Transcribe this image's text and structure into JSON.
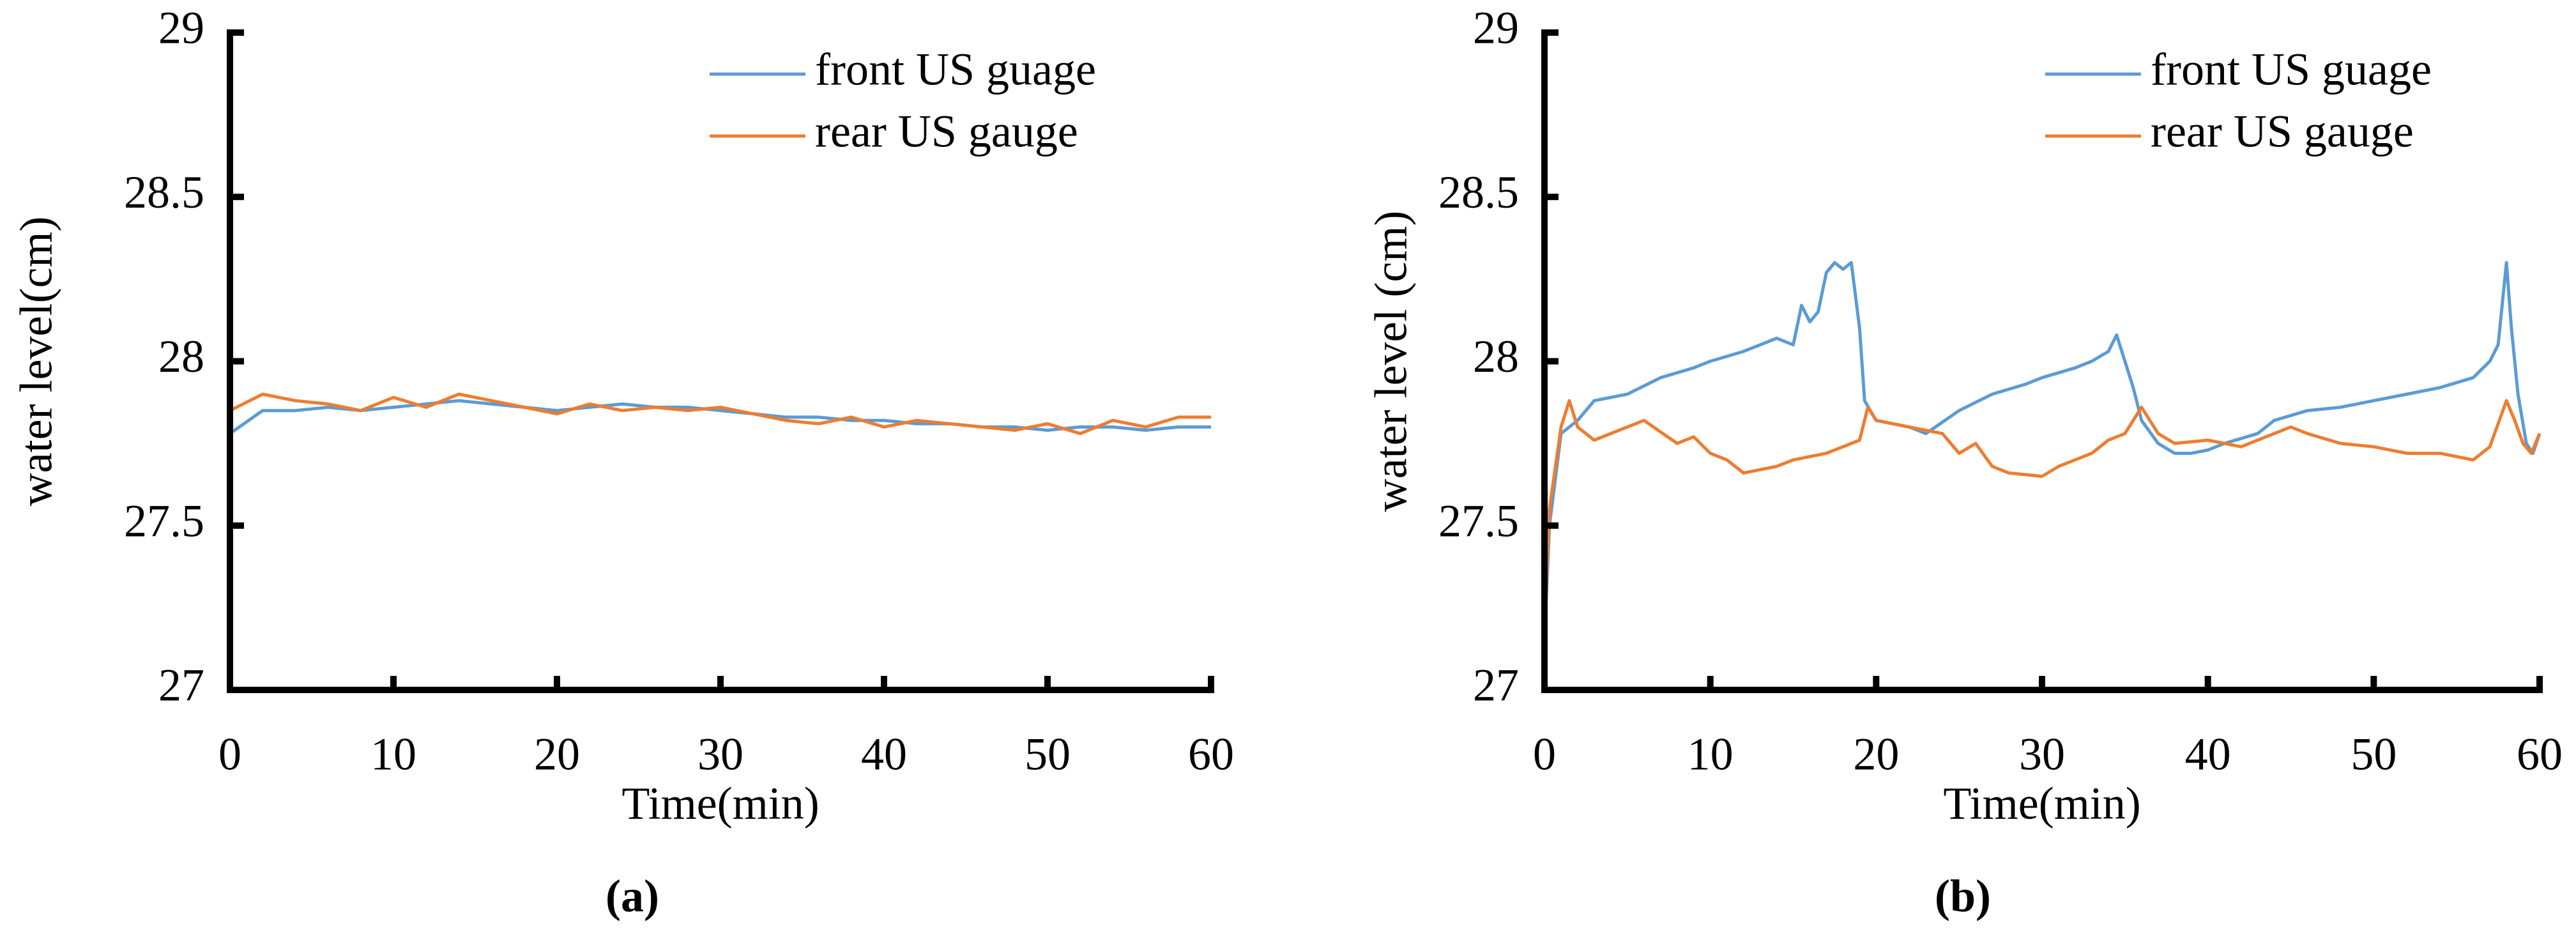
{
  "chart_data": [
    {
      "type": "line",
      "caption": "(a)",
      "x_label": "Time(min)",
      "y_label": "water level(cm)",
      "xlim": [
        0,
        60
      ],
      "ylim": [
        27,
        29
      ],
      "xticks": [
        0,
        10,
        20,
        30,
        40,
        50,
        60
      ],
      "yticks": [
        27,
        27.5,
        28,
        28.5,
        29
      ],
      "series": [
        {
          "name": "front US guage",
          "color": "#5b9bd5",
          "x": [
            0,
            2,
            4,
            6,
            8,
            10,
            12,
            14,
            16,
            18,
            20,
            22,
            24,
            26,
            28,
            30,
            32,
            34,
            36,
            38,
            40,
            42,
            44,
            46,
            48,
            50,
            52,
            54,
            56,
            58,
            60
          ],
          "values": [
            27.78,
            27.85,
            27.85,
            27.86,
            27.85,
            27.86,
            27.87,
            27.88,
            27.87,
            27.86,
            27.85,
            27.86,
            27.87,
            27.86,
            27.86,
            27.85,
            27.84,
            27.83,
            27.83,
            27.82,
            27.82,
            27.81,
            27.81,
            27.8,
            27.8,
            27.79,
            27.8,
            27.8,
            27.79,
            27.8,
            27.8
          ]
        },
        {
          "name": "rear US gauge",
          "color": "#ed7d31",
          "x": [
            0,
            2,
            4,
            6,
            8,
            10,
            12,
            14,
            16,
            18,
            20,
            22,
            24,
            26,
            28,
            30,
            32,
            34,
            36,
            38,
            40,
            42,
            44,
            46,
            48,
            50,
            52,
            54,
            56,
            58,
            60
          ],
          "values": [
            27.85,
            27.9,
            27.88,
            27.87,
            27.85,
            27.89,
            27.86,
            27.9,
            27.88,
            27.86,
            27.84,
            27.87,
            27.85,
            27.86,
            27.85,
            27.86,
            27.84,
            27.82,
            27.81,
            27.83,
            27.8,
            27.82,
            27.81,
            27.8,
            27.79,
            27.81,
            27.78,
            27.82,
            27.8,
            27.83,
            27.83
          ]
        }
      ]
    },
    {
      "type": "line",
      "caption": "(b)",
      "x_label": "Time(min)",
      "y_label": "water level (cm)",
      "xlim": [
        0,
        60
      ],
      "ylim": [
        27,
        29
      ],
      "xticks": [
        0,
        10,
        20,
        30,
        40,
        50,
        60
      ],
      "yticks": [
        27,
        27.5,
        28,
        28.5,
        29
      ],
      "series": [
        {
          "name": "front US guage",
          "color": "#5b9bd5",
          "x": [
            0,
            0.3,
            1,
            2,
            3,
            5,
            7,
            9,
            10,
            12,
            13,
            14,
            15,
            15.5,
            16,
            16.5,
            17,
            17.5,
            18,
            18.5,
            19,
            19.3,
            20,
            22,
            23,
            25,
            27,
            29,
            30,
            32,
            33,
            34,
            34.5,
            35,
            35.5,
            36,
            37,
            38,
            39,
            40,
            41,
            43,
            44,
            46,
            48,
            50,
            52,
            54,
            56,
            57,
            57.5,
            58,
            58.3,
            58.7,
            59.2,
            59.6,
            60
          ],
          "values": [
            27.15,
            27.5,
            27.78,
            27.82,
            27.88,
            27.9,
            27.95,
            27.98,
            28.0,
            28.03,
            28.05,
            28.07,
            28.05,
            28.17,
            28.12,
            28.15,
            28.27,
            28.3,
            28.28,
            28.3,
            28.1,
            27.88,
            27.82,
            27.8,
            27.78,
            27.85,
            27.9,
            27.93,
            27.95,
            27.98,
            28.0,
            28.03,
            28.08,
            28.0,
            27.92,
            27.82,
            27.75,
            27.72,
            27.72,
            27.73,
            27.75,
            27.78,
            27.82,
            27.85,
            27.86,
            27.88,
            27.9,
            27.92,
            27.95,
            28.0,
            28.05,
            28.3,
            28.1,
            27.9,
            27.75,
            27.72,
            27.78
          ]
        },
        {
          "name": "rear US gauge",
          "color": "#ed7d31",
          "x": [
            0,
            0.3,
            1,
            1.5,
            2,
            3,
            5,
            6,
            8,
            9,
            10,
            11,
            12,
            14,
            15,
            17,
            18,
            19,
            19.5,
            20,
            22,
            24,
            25,
            26,
            27,
            28,
            30,
            31,
            33,
            34,
            35,
            36,
            37,
            38,
            40,
            42,
            44,
            45,
            46,
            48,
            50,
            52,
            54,
            56,
            57,
            58,
            58.5,
            59,
            59.5,
            60
          ],
          "values": [
            27.2,
            27.55,
            27.8,
            27.88,
            27.8,
            27.76,
            27.8,
            27.82,
            27.75,
            27.77,
            27.72,
            27.7,
            27.66,
            27.68,
            27.7,
            27.72,
            27.74,
            27.76,
            27.86,
            27.82,
            27.8,
            27.78,
            27.72,
            27.75,
            27.68,
            27.66,
            27.65,
            27.68,
            27.72,
            27.76,
            27.78,
            27.86,
            27.78,
            27.75,
            27.76,
            27.74,
            27.78,
            27.8,
            27.78,
            27.75,
            27.74,
            27.72,
            27.72,
            27.7,
            27.74,
            27.88,
            27.82,
            27.75,
            27.72,
            27.78
          ]
        }
      ]
    }
  ]
}
